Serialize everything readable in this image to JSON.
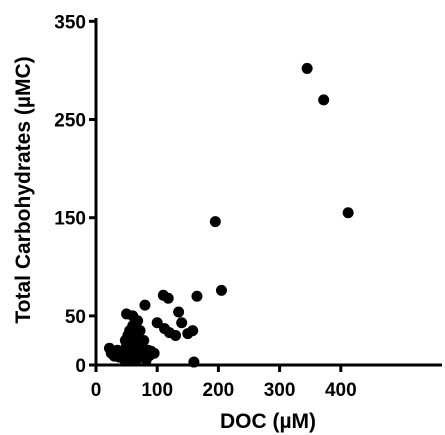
{
  "chart_data": {
    "type": "scatter",
    "title": "",
    "xlabel": "DOC (µM)",
    "ylabel": "Total Carbohydrates (µMC)",
    "xlim": [
      0,
      490
    ],
    "ylim": [
      0,
      355
    ],
    "xticks": [
      0,
      100,
      200,
      300,
      400
    ],
    "yticks": [
      0,
      50,
      150,
      250,
      350
    ],
    "grid": false,
    "marker_color": "#000000",
    "series": [
      {
        "points": [
          [
            22,
            17
          ],
          [
            25,
            12
          ],
          [
            30,
            9
          ],
          [
            35,
            15
          ],
          [
            38,
            8
          ],
          [
            42,
            14
          ],
          [
            45,
            10
          ],
          [
            47,
            5
          ],
          [
            48,
            25
          ],
          [
            50,
            20
          ],
          [
            50,
            52
          ],
          [
            52,
            30
          ],
          [
            53,
            12
          ],
          [
            55,
            35
          ],
          [
            55,
            5
          ],
          [
            57,
            27
          ],
          [
            58,
            8
          ],
          [
            60,
            50
          ],
          [
            60,
            40
          ],
          [
            62,
            20
          ],
          [
            63,
            14
          ],
          [
            65,
            4
          ],
          [
            65,
            30
          ],
          [
            67,
            25
          ],
          [
            68,
            45
          ],
          [
            70,
            18
          ],
          [
            70,
            8
          ],
          [
            72,
            35
          ],
          [
            75,
            12
          ],
          [
            78,
            25
          ],
          [
            80,
            61
          ],
          [
            82,
            5
          ],
          [
            85,
            15
          ],
          [
            88,
            10
          ],
          [
            90,
            14
          ],
          [
            95,
            12
          ],
          [
            100,
            43
          ],
          [
            110,
            71
          ],
          [
            112,
            37
          ],
          [
            118,
            68
          ],
          [
            120,
            33
          ],
          [
            130,
            30
          ],
          [
            135,
            54
          ],
          [
            140,
            43
          ],
          [
            150,
            32
          ],
          [
            158,
            35
          ],
          [
            160,
            3
          ],
          [
            165,
            70
          ],
          [
            195,
            146
          ],
          [
            205,
            76
          ],
          [
            345,
            302
          ],
          [
            372,
            270
          ],
          [
            412,
            155
          ]
        ]
      }
    ]
  }
}
